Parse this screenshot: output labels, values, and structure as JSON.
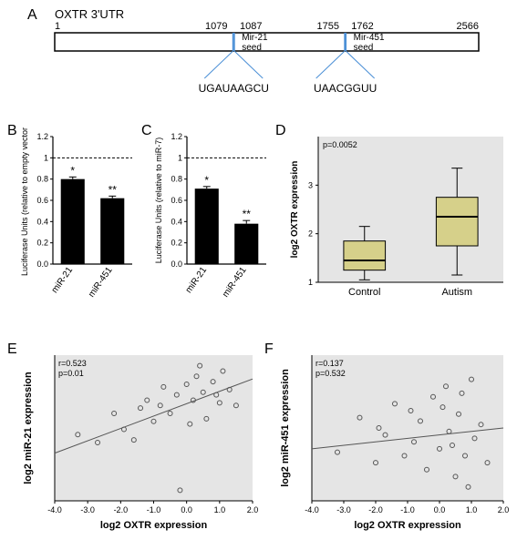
{
  "panelA": {
    "label": "A",
    "title": "OXTR 3'UTR",
    "positions": {
      "start": "1",
      "m21_start": "1079",
      "m21_end": "1087",
      "m451_start": "1755",
      "m451_end": "1762",
      "end": "2566"
    },
    "seed1_label": "Mir-21\nseed",
    "seed2_label": "Mir-451\nseed",
    "seq1": "UGAUAAGCU",
    "seq2": "UAACGGUU",
    "box_stroke": "#000000",
    "seed_line_color": "#4a8fd6"
  },
  "panelB": {
    "label": "B",
    "ylabel": "Luciferase Units (relative to empty vector)",
    "ylim": [
      0,
      1.2
    ],
    "ytick_step": 0.2,
    "bars": [
      {
        "cat": "miR-21",
        "value": 0.8,
        "err": 0.02,
        "sig": "*"
      },
      {
        "cat": "miR-451",
        "value": 0.62,
        "err": 0.02,
        "sig": "**"
      }
    ],
    "bar_color": "#000000",
    "bar_width": 0.6,
    "ref_line": 1.0
  },
  "panelC": {
    "label": "C",
    "ylabel": "Luciferase Units (relative to miR-7)",
    "ylim": [
      0,
      1.2
    ],
    "ytick_step": 0.2,
    "bars": [
      {
        "cat": "miR-21",
        "value": 0.71,
        "err": 0.02,
        "sig": "*"
      },
      {
        "cat": "miR-451",
        "value": 0.38,
        "err": 0.03,
        "sig": "**"
      }
    ],
    "bar_color": "#000000",
    "bar_width": 0.6,
    "ref_line": 1.0
  },
  "panelD": {
    "label": "D",
    "ylabel": "log2 OXTR expression",
    "p_text": "p=0.0052",
    "categories": [
      "Control",
      "Autism"
    ],
    "boxes": [
      {
        "q1": 1.25,
        "med": 1.45,
        "q3": 1.85,
        "lo": 1.05,
        "hi": 2.15
      },
      {
        "q1": 1.75,
        "med": 2.35,
        "q3": 2.75,
        "lo": 1.15,
        "hi": 3.35
      }
    ],
    "ylim": [
      1,
      4
    ],
    "yticks": [
      1,
      2,
      3
    ],
    "box_fill": "#d6d08a",
    "box_stroke": "#000000",
    "bg": "#e5e5e5"
  },
  "panelE": {
    "label": "E",
    "xlabel": "log2 OXTR expression",
    "ylabel": "log2 miR-21 expression",
    "r_text": "r=0.523",
    "p_text": "p=0.01",
    "xlim": [
      -4,
      2
    ],
    "xtick_step": 1,
    "ylim": [
      -3.5,
      2
    ],
    "line_y0": -1.7,
    "line_y1": 1.1,
    "bg": "#e5e5e5",
    "point_stroke": "#555555",
    "points": [
      [
        -3.3,
        -1.0
      ],
      [
        -2.7,
        -1.3
      ],
      [
        -2.2,
        -0.2
      ],
      [
        -1.9,
        -0.8
      ],
      [
        -1.6,
        -1.2
      ],
      [
        -1.2,
        0.3
      ],
      [
        -1.0,
        -0.5
      ],
      [
        -0.7,
        0.8
      ],
      [
        -0.5,
        -0.2
      ],
      [
        -0.3,
        0.5
      ],
      [
        -0.2,
        -3.1
      ],
      [
        0.0,
        0.9
      ],
      [
        0.2,
        0.3
      ],
      [
        0.3,
        1.2
      ],
      [
        0.5,
        0.6
      ],
      [
        0.6,
        -0.4
      ],
      [
        0.8,
        1.0
      ],
      [
        1.0,
        0.2
      ],
      [
        1.1,
        1.4
      ],
      [
        1.3,
        0.7
      ],
      [
        1.5,
        0.1
      ],
      [
        0.4,
        1.6
      ],
      [
        -0.8,
        0.1
      ],
      [
        0.9,
        0.5
      ],
      [
        -1.4,
        0.0
      ],
      [
        0.1,
        -0.6
      ]
    ]
  },
  "panelF": {
    "label": "F",
    "xlabel": "log2 OXTR expression",
    "ylabel": "log2 miR-451 expression",
    "r_text": "r=0.137",
    "p_text": "p=0.532",
    "xlim": [
      -4,
      2
    ],
    "xtick_step": 1,
    "ylim": [
      -2.2,
      2
    ],
    "line_y0": -0.7,
    "line_y1": -0.1,
    "bg": "#e5e5e5",
    "point_stroke": "#555555",
    "points": [
      [
        -3.2,
        -0.8
      ],
      [
        -2.5,
        0.2
      ],
      [
        -2.0,
        -1.1
      ],
      [
        -1.7,
        -0.3
      ],
      [
        -1.4,
        0.6
      ],
      [
        -1.1,
        -0.9
      ],
      [
        -0.8,
        -0.5
      ],
      [
        -0.6,
        0.1
      ],
      [
        -0.4,
        -1.3
      ],
      [
        -0.2,
        0.8
      ],
      [
        0.0,
        -0.7
      ],
      [
        0.2,
        1.1
      ],
      [
        0.3,
        -0.2
      ],
      [
        0.5,
        -1.5
      ],
      [
        0.6,
        0.3
      ],
      [
        0.8,
        -0.9
      ],
      [
        1.0,
        1.3
      ],
      [
        1.1,
        -0.4
      ],
      [
        1.3,
        0.0
      ],
      [
        1.5,
        -1.1
      ],
      [
        -0.9,
        0.4
      ],
      [
        0.4,
        -0.6
      ],
      [
        0.9,
        -1.8
      ],
      [
        -1.9,
        -0.1
      ],
      [
        0.1,
        0.5
      ],
      [
        0.7,
        0.9
      ]
    ]
  }
}
